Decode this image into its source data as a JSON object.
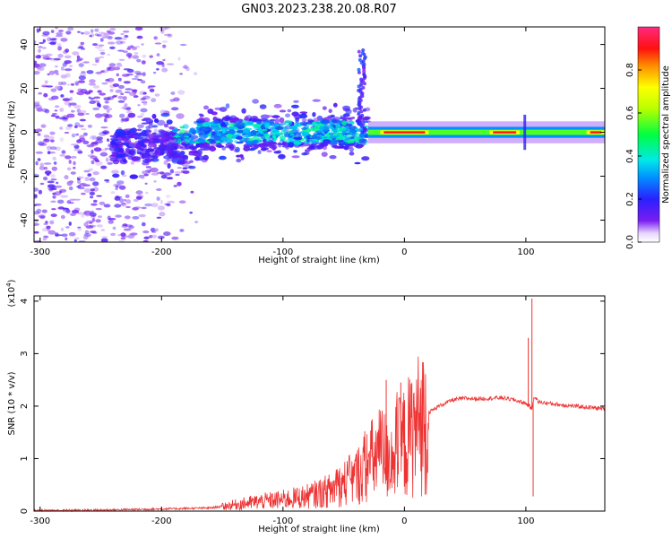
{
  "title": "GN03.2023.238.20.08.R07",
  "chart_data": [
    {
      "type": "heatmap",
      "xlabel": "Height of straight line (km)",
      "ylabel": "Frequency (Hz)",
      "xlim": [
        -305,
        165
      ],
      "ylim": [
        -50,
        48
      ],
      "xticks": [
        "-300",
        "-200",
        "-100",
        "0",
        "100"
      ],
      "yticks": [
        "40",
        "20",
        "0",
        "-20",
        "-40"
      ],
      "colorbar": {
        "label": "Normalized spectral amplitude",
        "range": [
          0.0,
          1.0
        ],
        "ticks": [
          "0.0",
          "0.2",
          "0.4",
          "0.6",
          "0.8"
        ],
        "colormap": "rainbow (purple-blue-cyan-green-yellow-red-magenta)"
      },
      "features": {
        "noise_region_x": [
          -305,
          -200
        ],
        "band_center_hz": 0,
        "band_noisy_x": [
          -240,
          -30
        ],
        "band_smooth_x": [
          -30,
          165
        ],
        "spike_near_x": -35,
        "spike_peak_hz": 38,
        "hot_segments_x": [
          [
            -20,
            20
          ],
          [
            70,
            95
          ],
          [
            150,
            165
          ]
        ]
      }
    },
    {
      "type": "line",
      "xlabel": "Height of straight line (km)",
      "ylabel": "SNR (10 * v/v)",
      "y_multiplier": "(x10^4)",
      "xlim": [
        -305,
        165
      ],
      "ylim": [
        0,
        4.1
      ],
      "xticks": [
        "-300",
        "-200",
        "-100",
        "0",
        "100"
      ],
      "yticks": [
        "0",
        "1",
        "2",
        "3",
        "4"
      ],
      "color": "#ee3333",
      "series": [
        {
          "name": "",
          "x": [
            -305,
            -250,
            -200,
            -160,
            -140,
            -120,
            -100,
            -80,
            -60,
            -40,
            -30,
            -20,
            -10,
            0,
            10,
            20,
            30,
            40,
            50,
            60,
            70,
            80,
            90,
            100,
            103,
            105,
            107,
            110,
            120,
            130,
            140,
            150,
            165
          ],
          "y": [
            0.01,
            0.02,
            0.04,
            0.06,
            0.12,
            0.18,
            0.22,
            0.28,
            0.4,
            0.65,
            0.9,
            1.1,
            1.05,
            1.3,
            1.62,
            1.88,
            2.02,
            2.12,
            2.15,
            2.14,
            2.15,
            2.16,
            2.12,
            2.05,
            2.0,
            1.95,
            2.2,
            2.08,
            2.05,
            2.02,
            2.0,
            1.98,
            1.95
          ]
        }
      ],
      "spikes": [
        {
          "x": 105,
          "y": 4.05
        },
        {
          "x": 102,
          "y": 3.3
        },
        {
          "x": -15,
          "y": 2.5
        },
        {
          "x": -3,
          "y": 2.45
        },
        {
          "x": 106,
          "y": 0.28
        }
      ]
    }
  ]
}
